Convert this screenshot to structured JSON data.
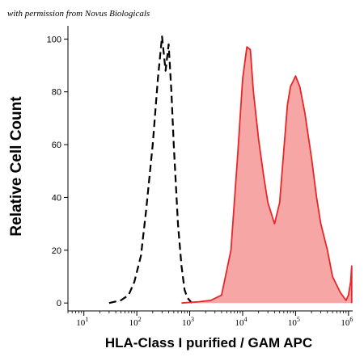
{
  "credit": "with permission from Novus Biologicals",
  "colors": {
    "stained_line": "#e8262a",
    "stained_fill": "#f7a6a6",
    "control_line": "#000000",
    "axis": "#000000"
  },
  "chart_data": {
    "type": "area",
    "title": "",
    "xlabel": "HLA-Class I purified / GAM APC",
    "ylabel": "Relative Cell Count",
    "x_scale": "log",
    "xlim": [
      5,
      1200000
    ],
    "ylim": [
      -3,
      105
    ],
    "x_ticks": [
      {
        "value": 10,
        "base": "10",
        "exp": "1"
      },
      {
        "value": 100,
        "base": "10",
        "exp": "2"
      },
      {
        "value": 1000,
        "base": "10",
        "exp": "3"
      },
      {
        "value": 10000,
        "base": "10",
        "exp": "4"
      },
      {
        "value": 100000,
        "base": "10",
        "exp": "5"
      },
      {
        "value": 1000000,
        "base": "10",
        "exp": "6"
      }
    ],
    "y_ticks": [
      0,
      20,
      40,
      60,
      80,
      100
    ],
    "grid": false,
    "legend": "none",
    "series": [
      {
        "style": "dashed-line",
        "x": [
          30,
          50,
          70,
          90,
          120,
          150,
          200,
          250,
          300,
          350,
          400,
          450,
          500,
          600,
          700,
          800,
          900,
          1100
        ],
        "y": [
          0,
          1,
          3,
          8,
          18,
          35,
          60,
          85,
          101,
          88,
          98,
          80,
          60,
          30,
          14,
          5,
          2,
          0
        ]
      },
      {
        "style": "filled-area",
        "x": [
          700,
          1500,
          2500,
          4000,
          6000,
          8000,
          10000,
          12000,
          14000,
          16000,
          20000,
          25000,
          30000,
          40000,
          50000,
          60000,
          70000,
          80000,
          90000,
          100000,
          120000,
          150000,
          200000,
          250000,
          300000,
          400000,
          500000,
          700000,
          900000,
          1000000,
          1100000,
          1150000,
          1150000
        ],
        "y": [
          0,
          0.5,
          1,
          3,
          20,
          55,
          85,
          97,
          96,
          80,
          62,
          48,
          38,
          30,
          38,
          58,
          75,
          82,
          84,
          86,
          82,
          72,
          55,
          40,
          30,
          20,
          10,
          4,
          1,
          3,
          8,
          14,
          0
        ]
      }
    ]
  }
}
